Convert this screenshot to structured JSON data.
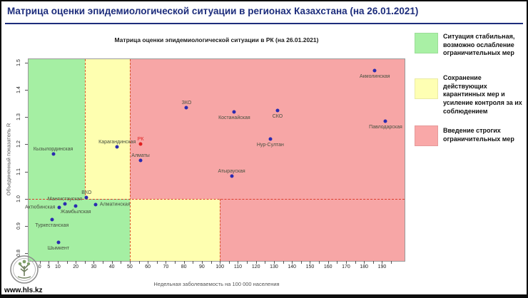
{
  "header": {
    "title": "Матрица оценки эпидемиологической ситуации в регионах Казахстана (на 26.01.2021)",
    "accent_color": "#1d2d7c"
  },
  "footer": {
    "website": "www.hls.kz"
  },
  "legend": {
    "items": [
      {
        "text": "Ситуация стабильная, возможно ослабление ограничительных мер",
        "color": "#a9f0a5"
      },
      {
        "text": "Сохранение действующих карантинных мер и усиление контроля за их соблюдением",
        "color": "#feffb3"
      },
      {
        "text": "Введение строгих ограничительных мер",
        "color": "#f9a8a8"
      }
    ]
  },
  "chart_data": {
    "type": "scatter",
    "title": "Матрица оценки эпидемиологической ситуации в РК (на 26.01.2021)",
    "xlabel": "Недельная заболеваемость на 100 000 населения",
    "ylabel": "Объединенный показатель R",
    "xlim": [
      -6.2,
      202.5
    ],
    "ylim": [
      0.771,
      1.513
    ],
    "x_ticks_labeled": [
      0,
      5,
      10,
      20,
      30,
      40,
      50,
      60,
      70,
      80,
      90,
      100,
      110,
      120,
      130,
      140,
      150,
      160,
      170,
      180,
      190
    ],
    "x_minor_tick_step": 5,
    "x_minor_tick_max": 195,
    "y_ticks": [
      0.8,
      0.9,
      1.0,
      1.1,
      1.2,
      1.3,
      1.4,
      1.5
    ],
    "grid": false,
    "legend_position": "right",
    "zone_colors": {
      "green": "#a5efa3",
      "yellow": "#feffb0",
      "red": "#f7a6a6"
    },
    "zones": [
      {
        "x0": -6.2,
        "x1": 25,
        "y0": 1.0,
        "y1": 1.513,
        "color": "green"
      },
      {
        "x0": 25,
        "x1": 50,
        "y0": 1.0,
        "y1": 1.513,
        "color": "yellow"
      },
      {
        "x0": 50,
        "x1": 202.5,
        "y0": 1.0,
        "y1": 1.513,
        "color": "red"
      },
      {
        "x0": -6.2,
        "x1": 50,
        "y0": 0.771,
        "y1": 1.0,
        "color": "green"
      },
      {
        "x0": 50,
        "x1": 100,
        "y0": 0.771,
        "y1": 1.0,
        "color": "yellow"
      },
      {
        "x0": 100,
        "x1": 202.5,
        "y0": 0.771,
        "y1": 1.0,
        "color": "red"
      }
    ],
    "threshold_lines": [
      {
        "orient": "h",
        "at": 1.0,
        "from": -6.2,
        "to": 202.5,
        "color": "#dc3c2e"
      },
      {
        "orient": "v",
        "at": 25,
        "from": 1.0,
        "to": 1.513,
        "color": "#d9552b"
      },
      {
        "orient": "v",
        "at": 50,
        "from": 0.771,
        "to": 1.513,
        "color": "#d9552b"
      },
      {
        "orient": "v",
        "at": 100,
        "from": 0.771,
        "to": 1.0,
        "color": "#d9552b"
      }
    ],
    "point_color": "#2b2bb0",
    "label_color": "#46503f",
    "points": [
      {
        "name": "Кызылординская",
        "x": 7.5,
        "y": 1.165,
        "label_pos": "above"
      },
      {
        "name": "Карагандинская",
        "x": 43,
        "y": 1.19,
        "label_pos": "above"
      },
      {
        "name": "РК",
        "x": 56,
        "y": 1.2,
        "label_pos": "above",
        "point_color": "#e02020",
        "label_color": "#e02020"
      },
      {
        "name": "Алматы",
        "x": 56,
        "y": 1.14,
        "label_pos": "above"
      },
      {
        "name": "ЗКО",
        "x": 81.5,
        "y": 1.335,
        "label_pos": "above"
      },
      {
        "name": "Костанайская",
        "x": 108,
        "y": 1.32,
        "label_pos": "below"
      },
      {
        "name": "СКО",
        "x": 132,
        "y": 1.325,
        "label_pos": "below"
      },
      {
        "name": "Нур-Султан",
        "x": 128,
        "y": 1.22,
        "label_pos": "below"
      },
      {
        "name": "Акмолинская",
        "x": 186,
        "y": 1.47,
        "label_pos": "below"
      },
      {
        "name": "Павлодарская",
        "x": 192,
        "y": 1.285,
        "label_pos": "below"
      },
      {
        "name": "Атырауская",
        "x": 106.5,
        "y": 1.083,
        "label_pos": "above"
      },
      {
        "name": "ВКО",
        "x": 26,
        "y": 1.005,
        "label_pos": "above"
      },
      {
        "name": "Мангистауская",
        "x": 14,
        "y": 0.98,
        "label_pos": "above"
      },
      {
        "name": "Актюбинская",
        "x": 11,
        "y": 0.968,
        "label_pos": "left"
      },
      {
        "name": "Жамбылская",
        "x": 20,
        "y": 0.974,
        "label_pos": "below"
      },
      {
        "name": "Алматинская",
        "x": 31,
        "y": 0.977,
        "label_pos": "right"
      },
      {
        "name": "Туркестанская",
        "x": 6.8,
        "y": 0.922,
        "label_pos": "below"
      },
      {
        "name": "Шымкент",
        "x": 10.4,
        "y": 0.838,
        "label_pos": "below"
      }
    ]
  }
}
